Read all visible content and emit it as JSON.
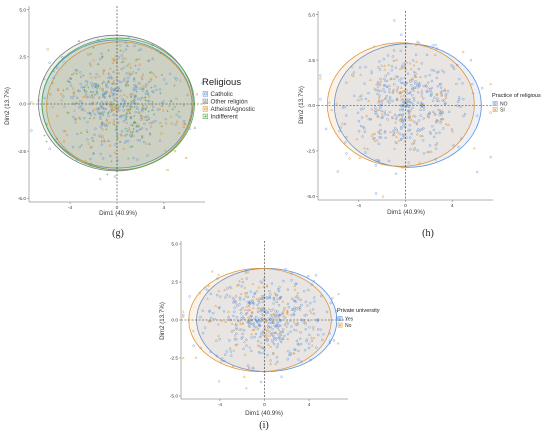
{
  "chart_data": [
    {
      "panel": "(g)",
      "type": "scatter",
      "xlabel": "Dim1 (40.9%)",
      "ylabel": "Dim2 (13.7%)",
      "xticks": [
        -4,
        0,
        4
      ],
      "yticks": [
        "5.0",
        "2.5",
        "0.0",
        "-2.5",
        "-5.0"
      ],
      "xlim": [
        -7.5,
        7.5
      ],
      "ylim": [
        -5.2,
        5.2
      ],
      "legend_title": "Religious",
      "legend_placement": "right",
      "series": [
        {
          "name": "Catholic",
          "color": "#5b8fd6",
          "marker": "circle",
          "n": 300,
          "ellipse": {
            "cx": 0.0,
            "cy": 0.0,
            "rx": 6.4,
            "ry": 3.4
          }
        },
        {
          "name": "Other religión",
          "color": "#7a7a7a",
          "marker": "triangle",
          "n": 60,
          "ellipse": {
            "cx": -0.1,
            "cy": 0.05,
            "rx": 6.6,
            "ry": 3.6
          }
        },
        {
          "name": "Atheist/Agnostic",
          "color": "#e0953a",
          "marker": "square",
          "n": 140,
          "ellipse": {
            "cx": 0.2,
            "cy": -0.1,
            "rx": 6.2,
            "ry": 3.4
          }
        },
        {
          "name": "Indifferent",
          "color": "#4fa84a",
          "marker": "plus",
          "n": 120,
          "ellipse": {
            "cx": 0.1,
            "cy": 0.0,
            "rx": 6.5,
            "ry": 3.5
          }
        }
      ]
    },
    {
      "panel": "(h)",
      "type": "scatter",
      "xlabel": "Dim1 (40.9%)",
      "ylabel": "Dim2 (13.7%)",
      "xticks": [
        -4,
        0,
        4
      ],
      "yticks": [
        "5.0",
        "2.5",
        "0.0",
        "-2.5",
        "-5.0"
      ],
      "xlim": [
        -7.5,
        7.5
      ],
      "ylim": [
        -5.2,
        5.2
      ],
      "legend_title": "Practice of religious",
      "legend_placement": "right",
      "series": [
        {
          "name": "NO",
          "color": "#5b8fd6",
          "marker": "circle",
          "n": 380,
          "ellipse": {
            "cx": 0.2,
            "cy": 0.0,
            "rx": 6.3,
            "ry": 3.4
          }
        },
        {
          "name": "SI",
          "color": "#e0953a",
          "marker": "triangle",
          "n": 140,
          "ellipse": {
            "cx": -0.4,
            "cy": 0.05,
            "rx": 6.3,
            "ry": 3.4
          }
        }
      ]
    },
    {
      "panel": "(i)",
      "type": "scatter",
      "xlabel": "Dim1 (40.9%)",
      "ylabel": "Dim2 (13.7%)",
      "xticks": [
        -4,
        0,
        4
      ],
      "yticks": [
        "5.0",
        "2.5",
        "0.0",
        "-2.5",
        "-5.0"
      ],
      "xlim": [
        -7.5,
        7.5
      ],
      "ylim": [
        -5.2,
        5.2
      ],
      "legend_title": "Private university",
      "legend_placement": "right",
      "series": [
        {
          "name": "Yes",
          "color": "#5b8fd6",
          "marker": "circle",
          "n": 380,
          "ellipse": {
            "cx": 0.2,
            "cy": 0.0,
            "rx": 6.3,
            "ry": 3.4
          }
        },
        {
          "name": "No",
          "color": "#e0953a",
          "marker": "triangle",
          "n": 140,
          "ellipse": {
            "cx": -0.4,
            "cy": 0.0,
            "rx": 6.4,
            "ry": 3.4
          }
        }
      ]
    }
  ]
}
